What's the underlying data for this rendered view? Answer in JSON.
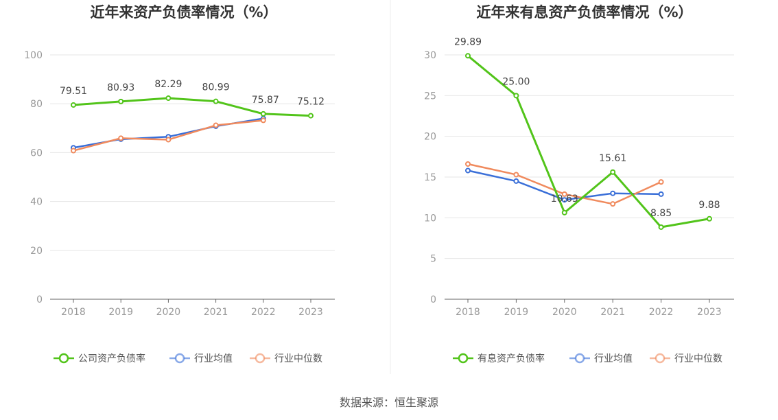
{
  "source_text": "数据来源：恒生聚源",
  "colors": {
    "green": "#52c41a",
    "blue": "#3a6fd8",
    "orange": "#f08a5d",
    "grid": "#e6e6e6",
    "axis": "#666666"
  },
  "chart_data": [
    {
      "type": "line",
      "title": "近年来资产负债率情况（%）",
      "x": [
        "2018",
        "2019",
        "2020",
        "2021",
        "2022",
        "2023"
      ],
      "ylim": [
        0,
        100
      ],
      "yticks": [
        0,
        20,
        40,
        60,
        80,
        100
      ],
      "grid": true,
      "legend": "bottom-center",
      "series": [
        {
          "name": "公司资产负债率",
          "color": "#52c41a",
          "values": [
            79.51,
            80.93,
            82.29,
            80.99,
            75.87,
            75.12
          ],
          "labels": [
            "79.51",
            "80.93",
            "82.29",
            "80.99",
            "75.87",
            "75.12"
          ]
        },
        {
          "name": "行业均值",
          "color": "#3a6fd8",
          "values": [
            62.0,
            65.5,
            66.5,
            70.8,
            74.0,
            null
          ]
        },
        {
          "name": "行业中位数",
          "color": "#f08a5d",
          "values": [
            60.8,
            65.9,
            65.3,
            71.2,
            73.2,
            null
          ]
        }
      ]
    },
    {
      "type": "line",
      "title": "近年来有息资产负债率情况（%）",
      "x": [
        "2018",
        "2019",
        "2020",
        "2021",
        "2022",
        "2023"
      ],
      "ylim": [
        0,
        30
      ],
      "yticks": [
        0,
        5,
        10,
        15,
        20,
        25,
        30
      ],
      "grid": true,
      "legend": "bottom-center",
      "series": [
        {
          "name": "有息资产负债率",
          "color": "#52c41a",
          "values": [
            29.89,
            25.0,
            10.63,
            15.61,
            8.85,
            9.88
          ],
          "labels": [
            "29.89",
            "25.00",
            "10.63",
            "15.61",
            "8.85",
            "9.88"
          ]
        },
        {
          "name": "行业均值",
          "color": "#3a6fd8",
          "values": [
            15.8,
            14.5,
            12.2,
            13.0,
            12.9,
            null
          ]
        },
        {
          "name": "行业中位数",
          "color": "#f08a5d",
          "values": [
            16.6,
            15.3,
            12.9,
            11.7,
            14.4,
            null
          ]
        }
      ]
    }
  ]
}
